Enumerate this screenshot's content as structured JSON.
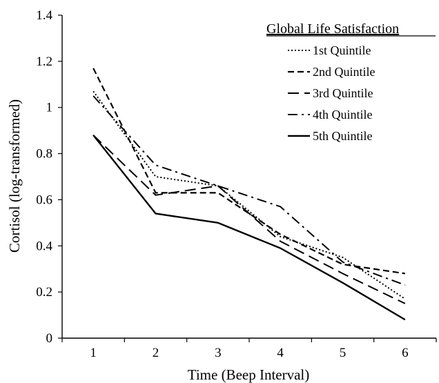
{
  "chart_data": {
    "type": "line",
    "title": "",
    "xlabel": "Time (Beep Interval)",
    "ylabel": "Cortisol (log-transformed)",
    "x": [
      1,
      2,
      3,
      4,
      5,
      6
    ],
    "xlim": [
      0.5,
      6.5
    ],
    "ylim": [
      0,
      1.4
    ],
    "yticks": [
      0,
      0.2,
      0.4,
      0.6,
      0.8,
      1,
      1.2,
      1.4
    ],
    "xticks": [
      1,
      2,
      3,
      4,
      5,
      6
    ],
    "ytick_labels": [
      "0",
      "0.2",
      "0.4",
      "0.6",
      "0.8",
      "1",
      "1.2",
      "1.4"
    ],
    "xtick_labels": [
      "1",
      "2",
      "3",
      "4",
      "5",
      "6"
    ],
    "grid": false,
    "legend": {
      "title": "Global Life Satisfaction",
      "placement": "top-right"
    },
    "series": [
      {
        "name": "1st Quintile",
        "style": "dotted",
        "values": [
          1.07,
          0.7,
          0.66,
          0.44,
          0.35,
          0.17
        ]
      },
      {
        "name": "2nd Quintile",
        "style": "short-dash",
        "values": [
          1.17,
          0.63,
          0.63,
          0.45,
          0.32,
          0.28
        ]
      },
      {
        "name": "3rd Quintile",
        "style": "long-dash",
        "values": [
          0.88,
          0.62,
          0.66,
          0.42,
          0.28,
          0.15
        ]
      },
      {
        "name": "4th Quintile",
        "style": "dash-dot",
        "values": [
          1.05,
          0.75,
          0.66,
          0.57,
          0.33,
          0.23
        ]
      },
      {
        "name": "5th  Quintile",
        "style": "solid",
        "values": [
          0.88,
          0.54,
          0.5,
          0.39,
          0.24,
          0.08
        ]
      }
    ],
    "colors": {
      "line": "#000000",
      "axis": "#000000",
      "background": "#ffffff"
    }
  }
}
